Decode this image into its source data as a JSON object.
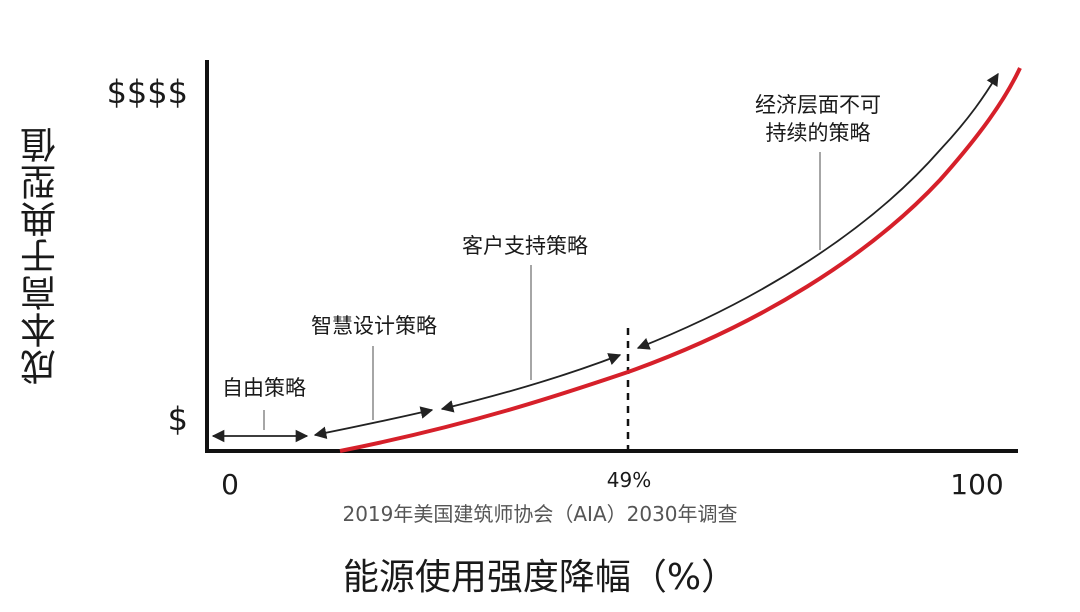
{
  "axes": {
    "y_label": "成本高于典型值",
    "x_label": "能源使用强度降幅（%）",
    "y_ticks": [
      "$$$$",
      "$"
    ],
    "x_ticks": [
      "0",
      "49%",
      "100"
    ],
    "source_note": "2019年美国建筑师协会（AIA）2030年调查"
  },
  "annotations": [
    {
      "label": "自由策略"
    },
    {
      "label": "智慧设计策略"
    },
    {
      "label": "客户支持策略"
    },
    {
      "label": "经济层面不可",
      "label2": "持续的策略"
    }
  ],
  "colors": {
    "curve": "#d6202a",
    "axis": "#111111",
    "arrow": "#222222",
    "leader": "#888888"
  }
}
